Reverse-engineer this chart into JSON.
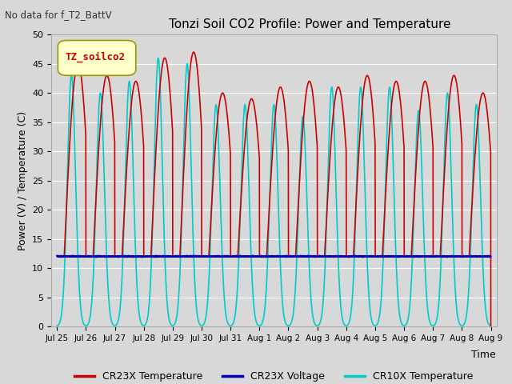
{
  "title": "Tonzi Soil CO2 Profile: Power and Temperature",
  "subtitle": "No data for f_T2_BattV",
  "ylabel": "Power (V) / Temperature (C)",
  "xlabel": "Time",
  "ylim": [
    0,
    50
  ],
  "yticks": [
    0,
    5,
    10,
    15,
    20,
    25,
    30,
    35,
    40,
    45,
    50
  ],
  "x_tick_labels": [
    "Jul 25",
    "Jul 26",
    "Jul 27",
    "Jul 28",
    "Jul 29",
    "Jul 30",
    "Jul 31",
    "Aug 1",
    "Aug 2",
    "Aug 3",
    "Aug 4",
    "Aug 5",
    "Aug 6",
    "Aug 7",
    "Aug 8",
    "Aug 9"
  ],
  "background_color": "#d8d8d8",
  "plot_bg_color": "#d8d8d8",
  "grid_color": "#ffffff",
  "legend_label_box": "TZ_soilco2",
  "legend_box_bg": "#ffffcc",
  "legend_box_border": "#999900",
  "cr23x_temp_color": "#cc0000",
  "cr23x_volt_color": "#0000bb",
  "cr10x_temp_color": "#00cccc",
  "voltage_value": 12.0,
  "line_width": 1.2,
  "cr23x_peaks": [
    45,
    43,
    42,
    46,
    47,
    40,
    39,
    41,
    42,
    41,
    43,
    42,
    42,
    43,
    40
  ],
  "cr10x_peaks": [
    43,
    40,
    42,
    46,
    45,
    38,
    38,
    38,
    36,
    41,
    41,
    41,
    37,
    40,
    38
  ],
  "n_days": 15
}
